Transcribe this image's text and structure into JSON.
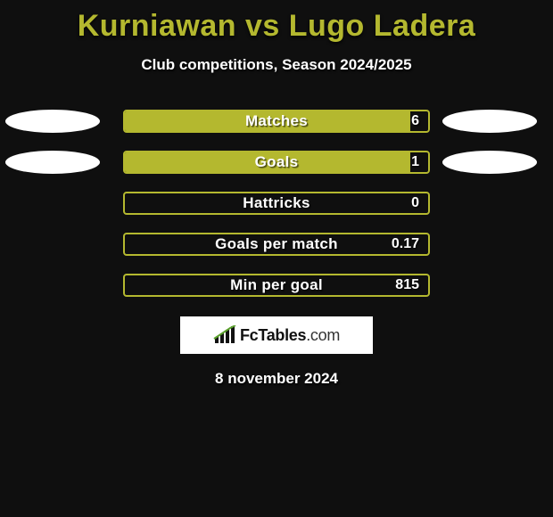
{
  "title": "Kurniawan vs Lugo Ladera",
  "subtitle": "Club competitions, Season 2024/2025",
  "date_text": "8 november 2024",
  "title_color": "#b4b82f",
  "accent_color": "#b4b82f",
  "background_color": "#0f0f0f",
  "ellipse_visible_rows": 2,
  "ellipse_left_color": "#ffffff",
  "ellipse_right_color": "#ffffff",
  "logo": {
    "brand": "FcTables",
    "tld": ".com"
  },
  "stats": [
    {
      "label": "Matches",
      "value": "6",
      "fill_pct": 94
    },
    {
      "label": "Goals",
      "value": "1",
      "fill_pct": 94
    },
    {
      "label": "Hattricks",
      "value": "0",
      "fill_pct": 0
    },
    {
      "label": "Goals per match",
      "value": "0.17",
      "fill_pct": 0
    },
    {
      "label": "Min per goal",
      "value": "815",
      "fill_pct": 0
    }
  ]
}
